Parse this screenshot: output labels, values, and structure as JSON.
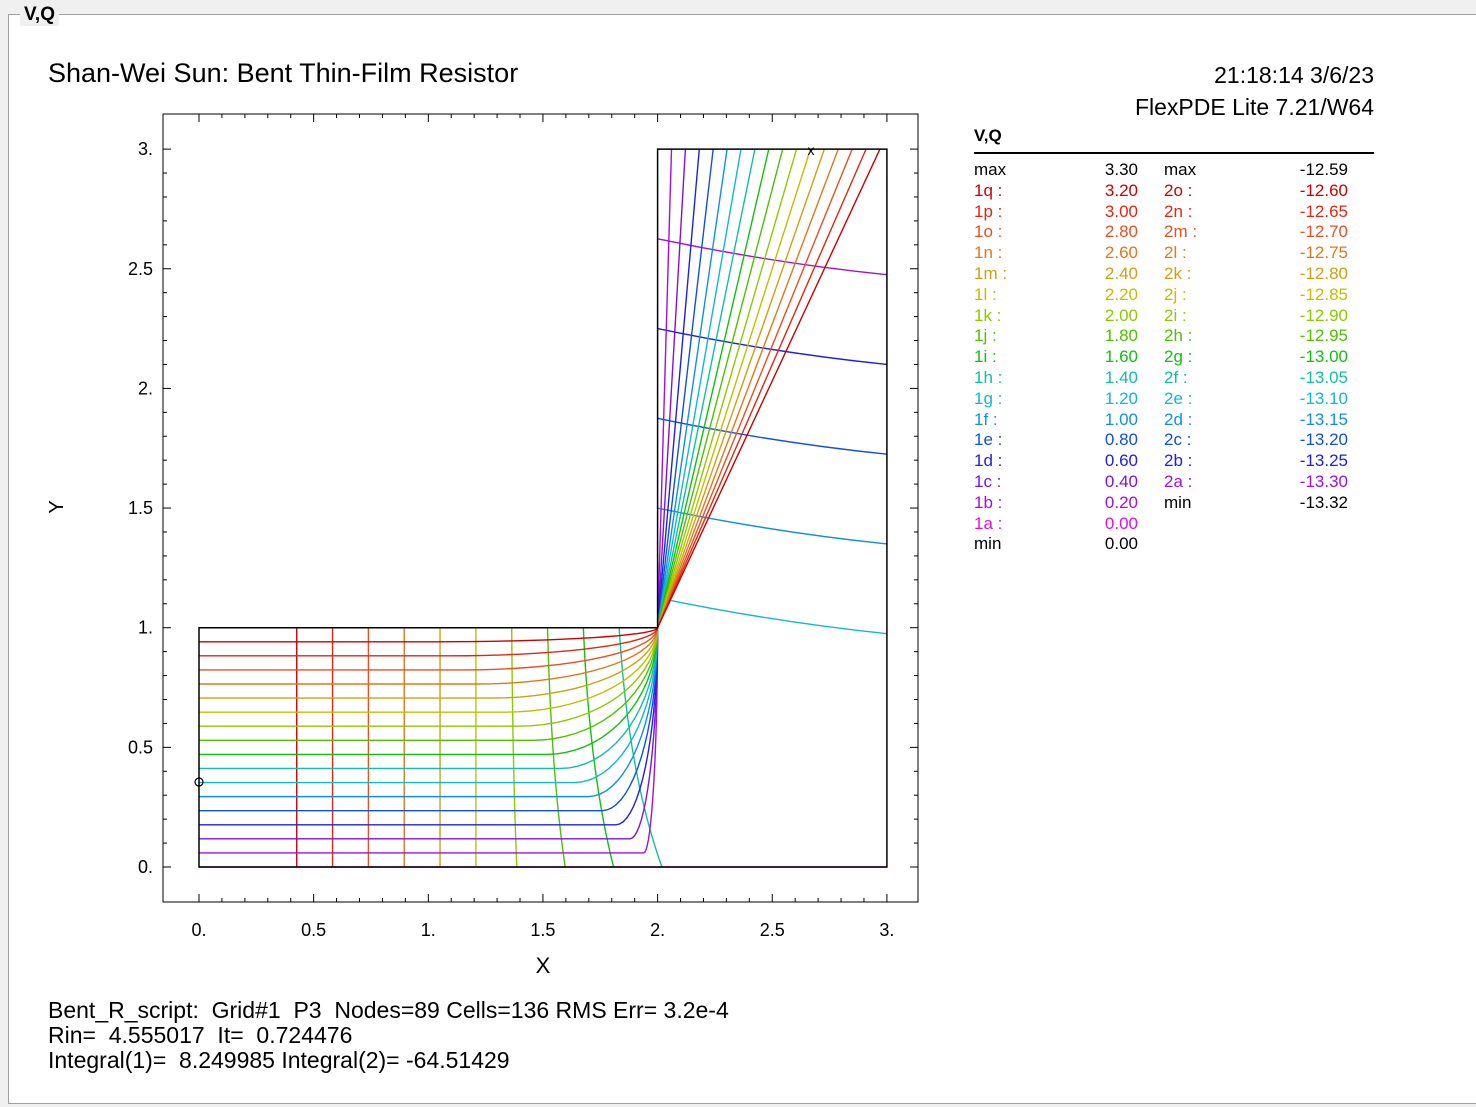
{
  "window": {
    "title": "V,Q"
  },
  "plot": {
    "title": "Shan-Wei Sun: Bent Thin-Film Resistor",
    "timestamp": "21:18:14 3/6/23",
    "version": "FlexPDE Lite 7.21/W64",
    "xlabel": "X",
    "ylabel": "Y",
    "xticks": [
      "0.",
      "0.5",
      "1.",
      "1.5",
      "2.",
      "2.5",
      "3."
    ],
    "yticks": [
      "0.",
      "0.5",
      "1.",
      "1.5",
      "2.",
      "2.5",
      "3."
    ]
  },
  "chart_data": {
    "type": "contour",
    "domain": "L-shaped region: [0,3]x[0,1] union [2,3]x[0,3]",
    "xlim": [
      0,
      3
    ],
    "ylim": [
      0,
      3
    ],
    "series": [
      {
        "name": "V",
        "levels": [
          0.0,
          0.2,
          0.4,
          0.6,
          0.8,
          1.0,
          1.2,
          1.4,
          1.6,
          1.8,
          2.0,
          2.2,
          2.4,
          2.6,
          2.8,
          3.0,
          3.2
        ],
        "max": 3.3,
        "min": 0.0
      },
      {
        "name": "Q",
        "levels": [
          -12.6,
          -12.65,
          -12.7,
          -12.75,
          -12.8,
          -12.85,
          -12.9,
          -12.95,
          -13.0,
          -13.05,
          -13.1,
          -13.15,
          -13.2,
          -13.25,
          -13.3
        ],
        "max": -12.59,
        "min": -13.32
      }
    ]
  },
  "legend": {
    "title": "V,Q",
    "rows": [
      {
        "l1": "max",
        "v1": "3.30",
        "l2": "max",
        "v2": "-12.59",
        "c1": "#000000",
        "c2": "#000000"
      },
      {
        "l1": "1q :",
        "v1": "3.20",
        "l2": "2o :",
        "v2": "-12.60",
        "c1": "#cc0000",
        "c2": "#cc0000"
      },
      {
        "l1": "1p :",
        "v1": "3.00",
        "l2": "2n :",
        "v2": "-12.65",
        "c1": "#e02810",
        "c2": "#e02810"
      },
      {
        "l1": "1o :",
        "v1": "2.80",
        "l2": "2m :",
        "v2": "-12.70",
        "c1": "#e85020",
        "c2": "#e85020"
      },
      {
        "l1": "1n :",
        "v1": "2.60",
        "l2": "2l :",
        "v2": "-12.75",
        "c1": "#e07818",
        "c2": "#e07818"
      },
      {
        "l1": "1m :",
        "v1": "2.40",
        "l2": "2k :",
        "v2": "-12.80",
        "c1": "#d0a010",
        "c2": "#d0a010"
      },
      {
        "l1": "1l :",
        "v1": "2.20",
        "l2": "2j :",
        "v2": "-12.85",
        "c1": "#c0c000",
        "c2": "#c0c000"
      },
      {
        "l1": "1k :",
        "v1": "2.00",
        "l2": "2i :",
        "v2": "-12.90",
        "c1": "#90c800",
        "c2": "#90c800"
      },
      {
        "l1": "1j :",
        "v1": "1.80",
        "l2": "2h :",
        "v2": "-12.95",
        "c1": "#50c000",
        "c2": "#50c000"
      },
      {
        "l1": "1i :",
        "v1": "1.60",
        "l2": "2g :",
        "v2": "-13.00",
        "c1": "#10c010",
        "c2": "#10c010"
      },
      {
        "l1": "1h :",
        "v1": "1.40",
        "l2": "2f :",
        "v2": "-13.05",
        "c1": "#10c0a0",
        "c2": "#10c0a0"
      },
      {
        "l1": "1g :",
        "v1": "1.20",
        "l2": "2e :",
        "v2": "-13.10",
        "c1": "#10b8d0",
        "c2": "#10b8d0"
      },
      {
        "l1": "1f :",
        "v1": "1.00",
        "l2": "2d :",
        "v2": "-13.15",
        "c1": "#1090e0",
        "c2": "#1090e0"
      },
      {
        "l1": "1e :",
        "v1": "0.80",
        "l2": "2c :",
        "v2": "-13.20",
        "c1": "#1050e0",
        "c2": "#1050e0"
      },
      {
        "l1": "1d :",
        "v1": "0.60",
        "l2": "2b :",
        "v2": "-13.25",
        "c1": "#2020e0",
        "c2": "#2020e0"
      },
      {
        "l1": "1c :",
        "v1": "0.40",
        "l2": "2a :",
        "v2": "-13.30",
        "c1": "#8010e0",
        "c2": "#a010e0"
      },
      {
        "l1": "1b :",
        "v1": "0.20",
        "l2": "min",
        "v2": "-13.32",
        "c1": "#a010e0",
        "c2": "#000000"
      },
      {
        "l1": "1a :",
        "v1": "0.00",
        "l2": "",
        "v2": "",
        "c1": "#e010e0",
        "c2": "#000000"
      },
      {
        "l1": "min",
        "v1": "0.00",
        "l2": "",
        "v2": "",
        "c1": "#000000",
        "c2": "#000000"
      }
    ]
  },
  "footer": {
    "line1": "Bent_R_script:  Grid#1  P3  Nodes=89 Cells=136 RMS Err= 3.2e-4",
    "line2": "Rin=  4.555017  It=  0.724476",
    "line3": "Integral(1)=  8.249985 Integral(2)= -64.51429"
  },
  "colors": {
    "V_palette": [
      "#e010e0",
      "#a010e0",
      "#8010e0",
      "#2020e0",
      "#1050e0",
      "#1090e0",
      "#10b8d0",
      "#10c0a0",
      "#10c010",
      "#50c000",
      "#90c800",
      "#c0c000",
      "#d0a010",
      "#e07818",
      "#e85020",
      "#e02810",
      "#cc0000"
    ],
    "Q_palette": [
      "#cc0000",
      "#e02810",
      "#e85020",
      "#e07818",
      "#d0a010",
      "#c0c000",
      "#90c800",
      "#50c000",
      "#10c010",
      "#10c0a0",
      "#10b8d0",
      "#1090e0",
      "#1050e0",
      "#2020e0",
      "#a010e0"
    ]
  }
}
